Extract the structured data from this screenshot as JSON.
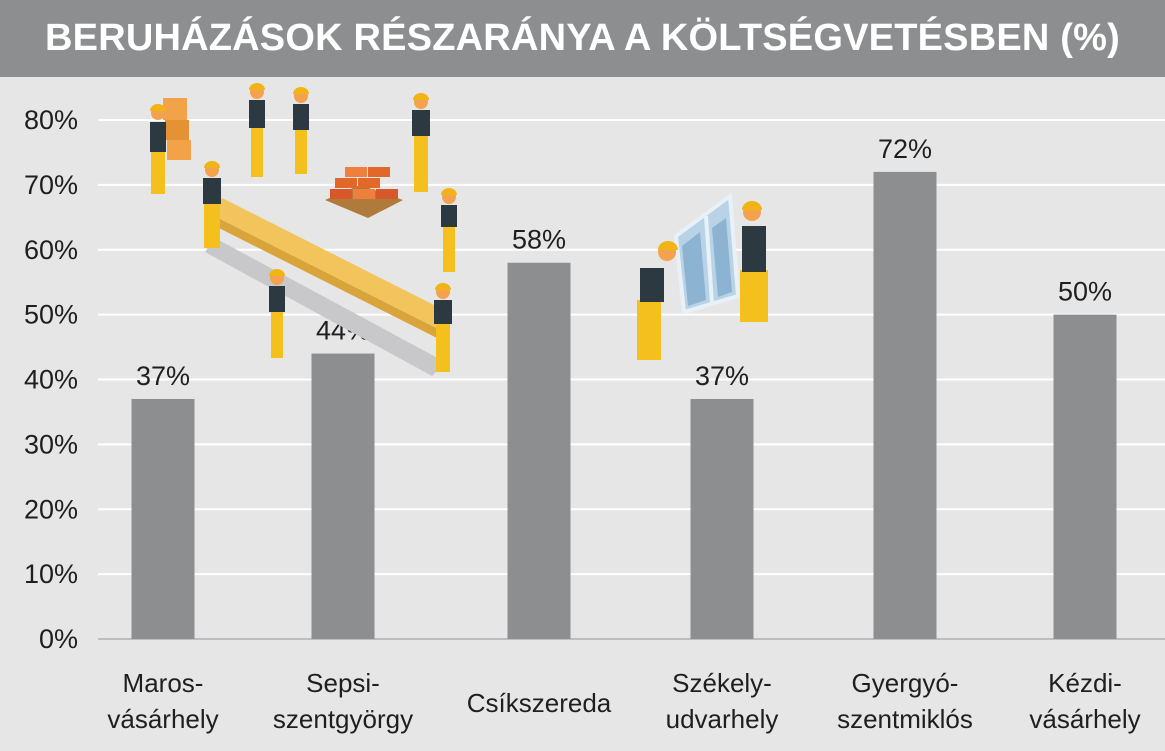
{
  "chart_data": {
    "type": "bar",
    "title": "BERUHÁZÁSOK RÉSZARÁNYA A KÖLTSÉGVETÉSBEN (%)",
    "categories": [
      [
        "Maros-",
        "vásárhely"
      ],
      [
        "Sepsi-",
        "szentgyörgy"
      ],
      [
        "Csíkszereda"
      ],
      [
        "Székely-",
        "udvarhely"
      ],
      [
        "Gyergyó-",
        "szentmiklós"
      ],
      [
        "Kézdi-",
        "vásárhely"
      ]
    ],
    "values": [
      37,
      44,
      58,
      37,
      72,
      50
    ],
    "value_labels": [
      "37%",
      "44%",
      "58%",
      "37%",
      "72%",
      "50%"
    ],
    "y_ticks": [
      0,
      10,
      20,
      30,
      40,
      50,
      60,
      70,
      80
    ],
    "y_tick_labels": [
      "0%",
      "10%",
      "20%",
      "30%",
      "40%",
      "50%",
      "60%",
      "70%",
      "80%"
    ],
    "ylim": [
      0,
      80
    ],
    "grid": true,
    "legend": "none",
    "colors": {
      "bar": "#8d8e90",
      "title_background": "#8d8e90",
      "background": "#e6e6e7",
      "grid": "#ffffff"
    },
    "illustrations": [
      "construction-workers-illustration",
      "window-installers-illustration"
    ]
  }
}
